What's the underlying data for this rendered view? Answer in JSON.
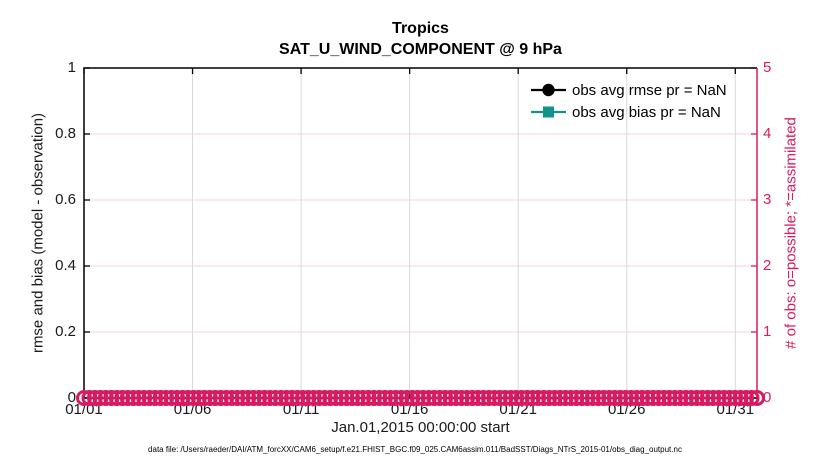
{
  "figure": {
    "title_line1": "Tropics",
    "title_line2": "SAT_U_WIND_COMPONENT @ 9 hPa",
    "caption": "data file: /Users/raeder/DAI/ATM_forcXX/CAM6_setup/f.e21.FHIST_BGC.f09_025.CAM6assim.011/BadSST/Diags_NTrS_2015-01/obs_diag_output.nc"
  },
  "colors": {
    "accent_pink": "#d81b60",
    "grid_pink": "#f6d3e0",
    "grid_gray": "#d9d9d9",
    "teal": "#12938a",
    "black": "#000000"
  },
  "legend": {
    "items": [
      {
        "label": "obs avg rmse pr = NaN",
        "color": "#000000",
        "marker": "circle"
      },
      {
        "label": "obs avg bias pr = NaN",
        "color": "#12938a",
        "marker": "square"
      }
    ]
  },
  "chart_data": {
    "type": "line",
    "title": "Tropics",
    "subtitle": "SAT_U_WIND_COMPONENT @ 9 hPa",
    "grid": true,
    "legend_position": "upper-right",
    "x_axis": {
      "label": "Jan.01,2015 00:00:00 start",
      "tick_labels": [
        "01/01",
        "01/06",
        "01/11",
        "01/16",
        "01/21",
        "01/26",
        "01/31"
      ],
      "tick_positions_days": [
        0,
        5,
        10,
        15,
        20,
        25,
        30
      ],
      "range_days": [
        0,
        31
      ]
    },
    "y_left": {
      "label": "rmse and bias (model - observation)",
      "lim": [
        0,
        1
      ],
      "tick_labels": [
        "0",
        "0.2",
        "0.4",
        "0.6",
        "0.8",
        "1"
      ],
      "tick_values": [
        0,
        0.2,
        0.4,
        0.6,
        0.8,
        1
      ],
      "color": "#000000"
    },
    "y_right": {
      "label": "# of obs: o=possible; *=assimilated",
      "lim": [
        0,
        5
      ],
      "tick_labels": [
        "0",
        "1",
        "2",
        "3",
        "4",
        "5"
      ],
      "tick_values": [
        0,
        1,
        2,
        3,
        4,
        5
      ],
      "color": "#d81b60"
    },
    "series": [
      {
        "name": "obs avg rmse pr = NaN",
        "axis": "left",
        "marker": "filled-circle",
        "color": "#000000",
        "values": "NaN",
        "plotted_points": 0
      },
      {
        "name": "obs avg bias pr = NaN",
        "axis": "left",
        "marker": "filled-square",
        "color": "#12938a",
        "values": "NaN",
        "plotted_points": 0
      },
      {
        "name": "# of obs possible (o)",
        "axis": "right",
        "marker": "open-circle",
        "color": "#d81b60",
        "points": 124,
        "constant_value": 0
      },
      {
        "name": "# of obs assimilated (*)",
        "axis": "right",
        "marker": "asterisk",
        "color": "#d81b60",
        "points": 124,
        "constant_value": 0
      }
    ]
  }
}
